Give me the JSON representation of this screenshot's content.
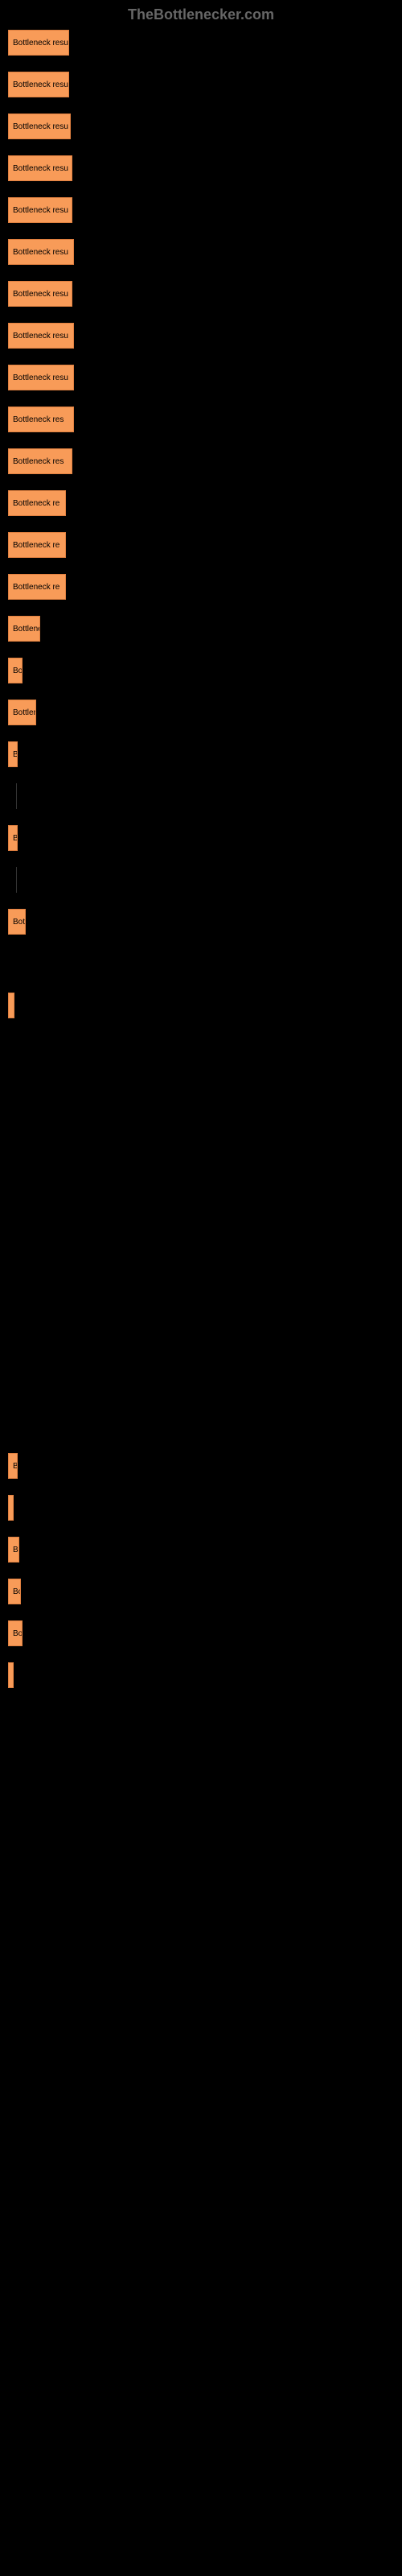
{
  "header": "TheBottlenecker.com",
  "label_prefix": "Bottleneck res",
  "bar_color": "#f89b58",
  "bar_border": "#e08040",
  "background_color": "#000000",
  "bars": [
    {
      "width": 76,
      "label": "Bottleneck resul"
    },
    {
      "width": 76,
      "label": "Bottleneck resul"
    },
    {
      "width": 78,
      "label": "Bottleneck resu"
    },
    {
      "width": 80,
      "label": "Bottleneck resu"
    },
    {
      "width": 80,
      "label": "Bottleneck resu"
    },
    {
      "width": 82,
      "label": "Bottleneck resu"
    },
    {
      "width": 80,
      "label": "Bottleneck resu"
    },
    {
      "width": 82,
      "label": "Bottleneck resu"
    },
    {
      "width": 82,
      "label": "Bottleneck resu"
    },
    {
      "width": 82,
      "label": "Bottleneck res"
    },
    {
      "width": 80,
      "label": "Bottleneck res"
    },
    {
      "width": 72,
      "label": "Bottleneck re"
    },
    {
      "width": 72,
      "label": "Bottleneck re"
    },
    {
      "width": 72,
      "label": "Bottleneck re"
    },
    {
      "width": 40,
      "label": "Bottlene"
    },
    {
      "width": 18,
      "label": "Bo"
    },
    {
      "width": 35,
      "label": "Bottler"
    },
    {
      "width": 12,
      "label": "B"
    },
    {
      "width": 0,
      "label": "",
      "marker": true
    },
    {
      "width": 12,
      "label": "B"
    },
    {
      "width": 0,
      "label": "",
      "marker": true
    },
    {
      "width": 22,
      "label": "Bott"
    },
    {
      "width": 0,
      "label": ""
    },
    {
      "width": 8,
      "label": ""
    },
    {
      "width": 0,
      "label": ""
    },
    {
      "width": 0,
      "label": ""
    },
    {
      "width": 0,
      "label": ""
    },
    {
      "width": 0,
      "label": ""
    },
    {
      "width": 0,
      "label": ""
    },
    {
      "width": 0,
      "label": ""
    },
    {
      "width": 0,
      "label": ""
    },
    {
      "width": 0,
      "label": ""
    },
    {
      "width": 0,
      "label": ""
    },
    {
      "width": 0,
      "label": ""
    },
    {
      "width": 12,
      "label": "B"
    },
    {
      "width": 6,
      "label": ""
    },
    {
      "width": 14,
      "label": "B"
    },
    {
      "width": 16,
      "label": "Bo"
    },
    {
      "width": 18,
      "label": "Bo"
    },
    {
      "width": 4,
      "label": ""
    }
  ]
}
